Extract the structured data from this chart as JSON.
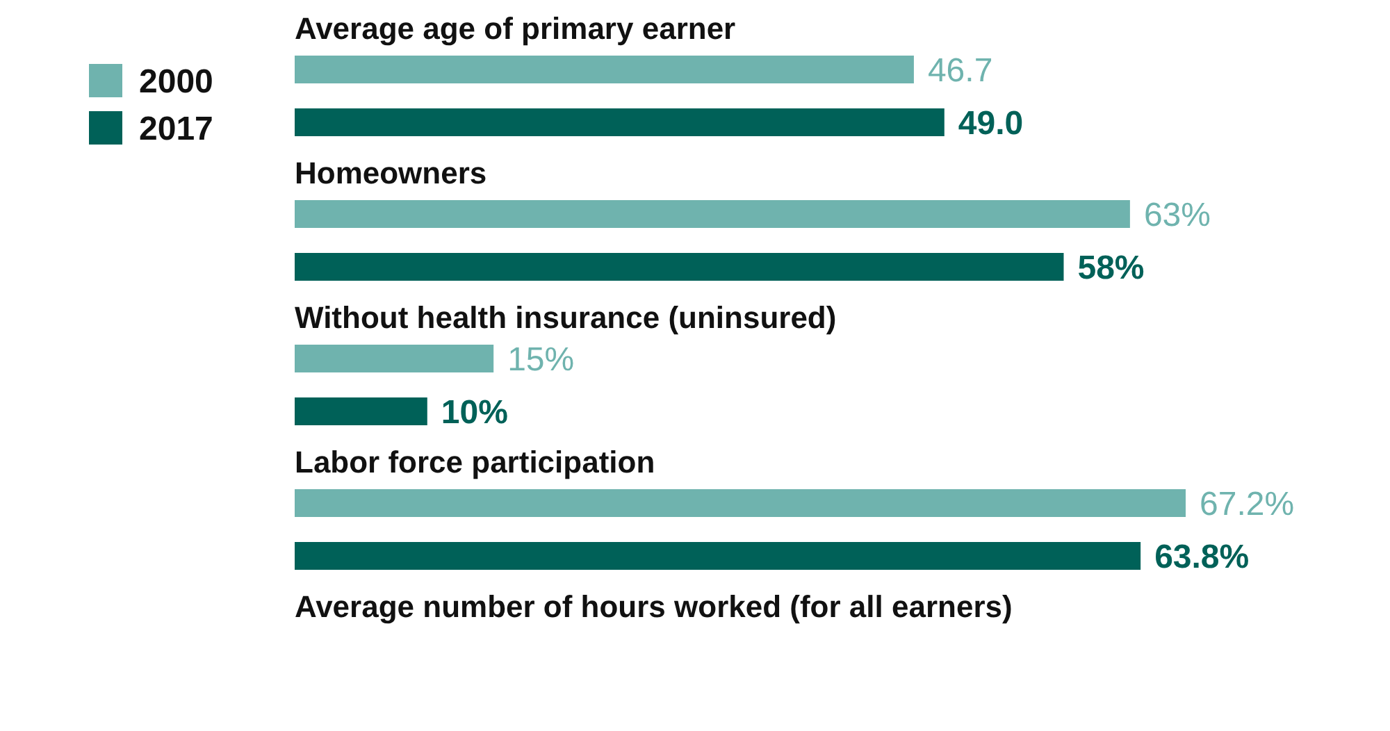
{
  "chart_data": {
    "type": "bar",
    "orientation": "horizontal",
    "categories": [
      "Average age of primary earner",
      "Homeowners",
      "Without health insurance (uninsured)",
      "Labor force participation",
      "Average number of hours worked (for all earners)"
    ],
    "series": [
      {
        "name": "2000",
        "color": "#6fb3ae",
        "values": [
          46.7,
          63,
          15,
          67.2,
          null
        ],
        "value_labels": [
          "46.7",
          "63%",
          "15%",
          "67.2%",
          null
        ]
      },
      {
        "name": "2017",
        "color": "#006158",
        "values": [
          49.0,
          58,
          10,
          63.8,
          null
        ],
        "value_labels": [
          "49.0",
          "58%",
          "10%",
          "63.8%",
          null
        ]
      }
    ],
    "legend": "top left",
    "tick_labels": false
  }
}
